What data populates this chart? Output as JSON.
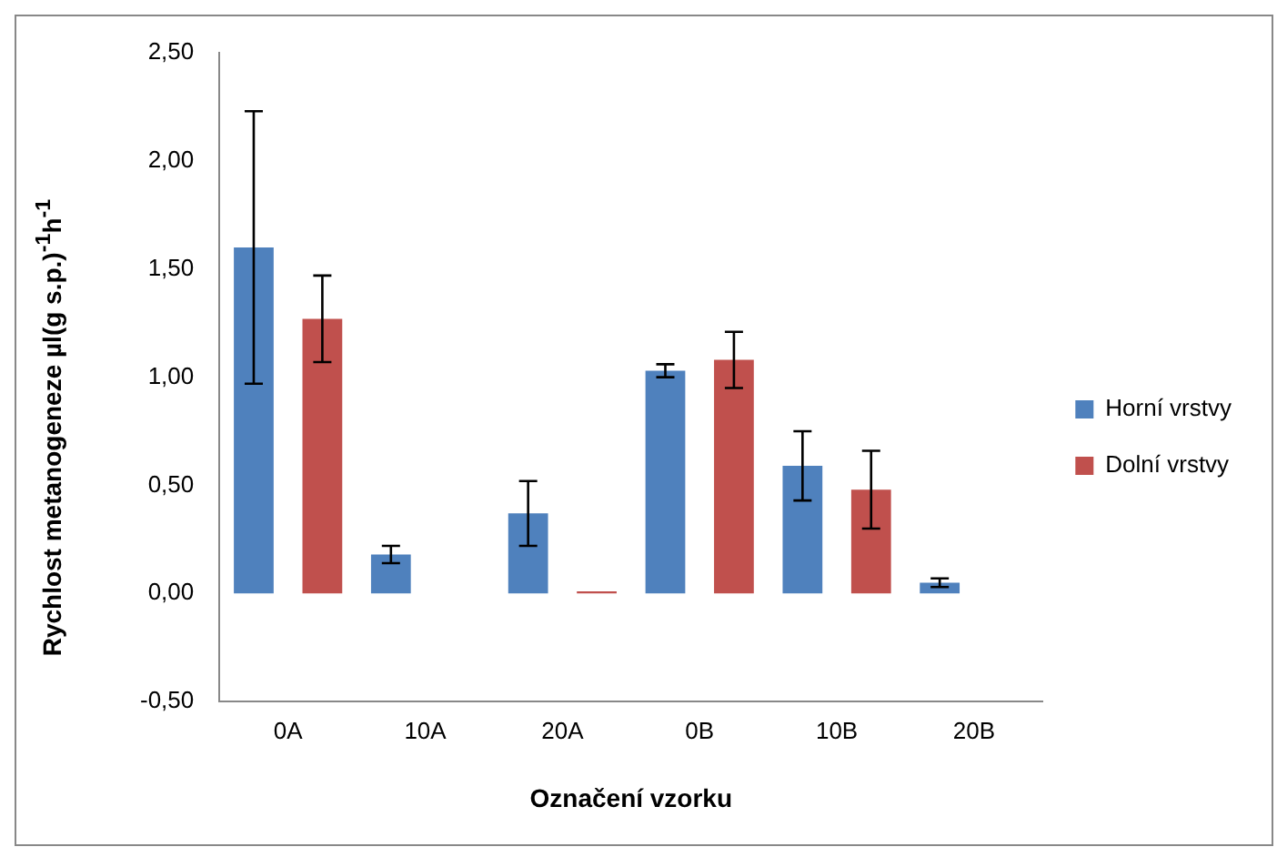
{
  "chart_data": {
    "type": "bar",
    "xlabel": "Označení vzorku",
    "ylabel": "Rychlost metanogeneze µl(g s.p.)$^{-1}$h$^{-1}$",
    "categories": [
      "0A",
      "10A",
      "20A",
      "0B",
      "10B",
      "20B"
    ],
    "series": [
      {
        "name": "Horní vrstvy",
        "color": "#4f81bd",
        "values": [
          1.6,
          0.18,
          0.37,
          1.03,
          0.59,
          0.05
        ],
        "errors": [
          0.63,
          0.04,
          0.15,
          0.03,
          0.16,
          0.02
        ]
      },
      {
        "name": "Dolní vrstvy",
        "color": "#c0504d",
        "values": [
          1.27,
          0,
          0.01,
          1.08,
          0.48,
          0
        ],
        "errors": [
          0.2,
          null,
          null,
          0.13,
          0.18,
          null
        ]
      }
    ],
    "ylim": [
      -0.5,
      2.5
    ],
    "yticks": [
      {
        "value": -0.5,
        "label": "-0,50"
      },
      {
        "value": 0,
        "label": "0,00"
      },
      {
        "value": 0.5,
        "label": "0,50"
      },
      {
        "value": 1,
        "label": "1,00"
      },
      {
        "value": 1.5,
        "label": "1,50"
      },
      {
        "value": 2,
        "label": "2,00"
      },
      {
        "value": 2.5,
        "label": "2,50"
      }
    ],
    "grid": false,
    "legend": "right"
  }
}
